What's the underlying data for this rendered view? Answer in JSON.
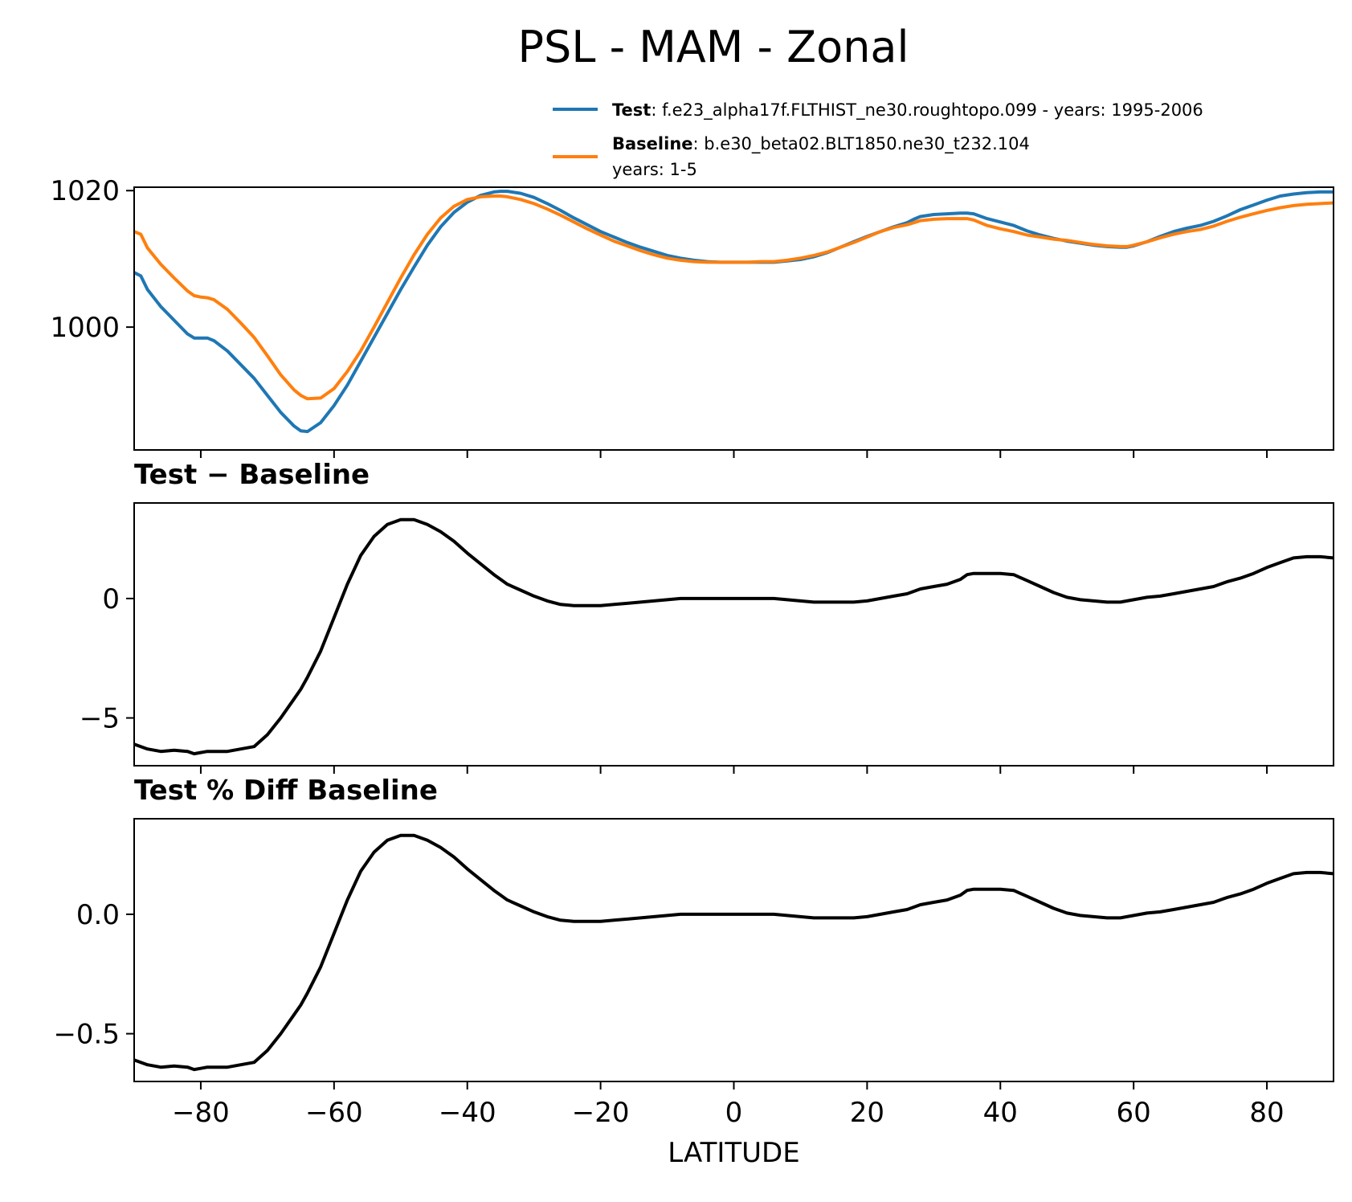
{
  "chart_data": [
    {
      "type": "line",
      "panel": "zonal-means",
      "title": "PSL - MAM - Zonal",
      "xlim": [
        -90,
        90
      ],
      "ylim": [
        982,
        1020.5
      ],
      "yticks": [
        1000,
        1020
      ],
      "ytick_labels": [
        "1000",
        "1020"
      ],
      "grid": false,
      "legend_placement": "above-right",
      "series": [
        {
          "name": "Test",
          "legend_label": "Test",
          "legend_text": ": f.e23_alpha17f.FLTHIST_ne30.roughtopo.099 - years: 1995-2006",
          "legend_text2": "",
          "color": "#1f77b4",
          "x": [
            -90,
            -89,
            -88,
            -86,
            -84,
            -82,
            -81,
            -80,
            -79,
            -78,
            -76,
            -74,
            -72,
            -70,
            -68,
            -66,
            -65,
            -64,
            -62,
            -60,
            -58,
            -56,
            -54,
            -52,
            -50,
            -48,
            -46,
            -44,
            -42,
            -40,
            -38,
            -36,
            -35,
            -34,
            -32,
            -30,
            -28,
            -26,
            -24,
            -22,
            -20,
            -18,
            -16,
            -14,
            -12,
            -10,
            -8,
            -6,
            -4,
            -2,
            0,
            2,
            4,
            6,
            8,
            10,
            12,
            14,
            16,
            18,
            20,
            22,
            24,
            26,
            27,
            28,
            30,
            32,
            34,
            35,
            36,
            38,
            40,
            42,
            44,
            46,
            48,
            50,
            52,
            54,
            56,
            58,
            59,
            60,
            62,
            64,
            66,
            68,
            70,
            72,
            74,
            76,
            78,
            80,
            82,
            84,
            86,
            88,
            90
          ],
          "values": [
            1008,
            1007.5,
            1005.5,
            1003,
            1001,
            999,
            998.4,
            998.4,
            998.4,
            998,
            996.5,
            994.5,
            992.5,
            990,
            987.5,
            985.5,
            984.8,
            984.7,
            986,
            988.5,
            991.5,
            995,
            998.5,
            1002,
            1005.5,
            1008.8,
            1012,
            1014.7,
            1016.8,
            1018.3,
            1019.3,
            1019.8,
            1019.9,
            1019.9,
            1019.6,
            1019,
            1018.1,
            1017.1,
            1016,
            1015,
            1014,
            1013.2,
            1012.4,
            1011.7,
            1011.1,
            1010.5,
            1010.1,
            1009.8,
            1009.6,
            1009.5,
            1009.5,
            1009.5,
            1009.5,
            1009.5,
            1009.7,
            1009.9,
            1010.3,
            1010.9,
            1011.7,
            1012.5,
            1013.3,
            1014,
            1014.7,
            1015.3,
            1015.8,
            1016.2,
            1016.5,
            1016.6,
            1016.7,
            1016.7,
            1016.6,
            1015.9,
            1015.4,
            1014.9,
            1014.1,
            1013.5,
            1013,
            1012.6,
            1012.3,
            1012,
            1011.8,
            1011.7,
            1011.7,
            1011.9,
            1012.5,
            1013.3,
            1014,
            1014.5,
            1014.9,
            1015.5,
            1016.3,
            1017.2,
            1017.9,
            1018.6,
            1019.2,
            1019.5,
            1019.7,
            1019.8,
            1019.8
          ]
        },
        {
          "name": "Baseline",
          "legend_label": "Baseline",
          "legend_text": ": b.e30_beta02.BLT1850.ne30_t232.104",
          "legend_text2": "years: 1-5",
          "color": "#ff7f0e",
          "x": [
            -90,
            -89,
            -88,
            -86,
            -84,
            -82,
            -81,
            -80,
            -79,
            -78,
            -76,
            -74,
            -72,
            -70,
            -68,
            -66,
            -65,
            -64,
            -62,
            -60,
            -58,
            -56,
            -54,
            -52,
            -50,
            -48,
            -46,
            -44,
            -42,
            -40,
            -38,
            -36,
            -35,
            -34,
            -32,
            -30,
            -28,
            -26,
            -24,
            -22,
            -20,
            -18,
            -16,
            -14,
            -12,
            -10,
            -8,
            -6,
            -4,
            -2,
            0,
            2,
            4,
            6,
            8,
            10,
            12,
            14,
            16,
            18,
            20,
            22,
            24,
            26,
            27,
            28,
            30,
            32,
            34,
            35,
            36,
            38,
            40,
            42,
            44,
            46,
            48,
            50,
            52,
            54,
            56,
            58,
            59,
            60,
            62,
            64,
            66,
            68,
            70,
            72,
            74,
            76,
            78,
            80,
            82,
            84,
            86,
            88,
            90
          ],
          "values": [
            1014,
            1013.6,
            1011.6,
            1009.2,
            1007.2,
            1005.3,
            1004.6,
            1004.4,
            1004.3,
            1004,
            1002.6,
            1000.6,
            998.5,
            995.8,
            993,
            990.8,
            990,
            989.5,
            989.6,
            991,
            993.5,
            996.5,
            1000,
            1003.6,
            1007.2,
            1010.6,
            1013.6,
            1016,
            1017.7,
            1018.7,
            1019.1,
            1019.2,
            1019.2,
            1019.1,
            1018.7,
            1018.1,
            1017.3,
            1016.4,
            1015.4,
            1014.4,
            1013.5,
            1012.6,
            1011.9,
            1011.2,
            1010.6,
            1010.1,
            1009.8,
            1009.6,
            1009.5,
            1009.5,
            1009.5,
            1009.5,
            1009.6,
            1009.6,
            1009.8,
            1010.1,
            1010.5,
            1011,
            1011.7,
            1012.4,
            1013.2,
            1014,
            1014.6,
            1015,
            1015.3,
            1015.6,
            1015.8,
            1015.9,
            1015.9,
            1015.9,
            1015.7,
            1014.9,
            1014.4,
            1014,
            1013.5,
            1013.2,
            1012.9,
            1012.7,
            1012.4,
            1012.1,
            1011.9,
            1011.8,
            1011.8,
            1012,
            1012.5,
            1013.1,
            1013.6,
            1014,
            1014.3,
            1014.8,
            1015.5,
            1016.1,
            1016.6,
            1017.1,
            1017.5,
            1017.8,
            1018,
            1018.1,
            1018.2
          ]
        }
      ]
    },
    {
      "type": "line",
      "panel": "difference",
      "title": "Test − Baseline",
      "xlim": [
        -90,
        90
      ],
      "ylim": [
        -7,
        4
      ],
      "yticks": [
        -5,
        0
      ],
      "ytick_labels": [
        "−5",
        "0"
      ],
      "grid": false,
      "series": [
        {
          "color": "#000000",
          "x": [
            -90,
            -89,
            -88,
            -86,
            -84,
            -82,
            -81,
            -80,
            -79,
            -78,
            -76,
            -74,
            -72,
            -70,
            -68,
            -66,
            -65,
            -64,
            -62,
            -60,
            -58,
            -56,
            -54,
            -52,
            -50,
            -48,
            -46,
            -44,
            -42,
            -40,
            -38,
            -36,
            -35,
            -34,
            -32,
            -30,
            -28,
            -26,
            -24,
            -22,
            -20,
            -18,
            -16,
            -14,
            -12,
            -10,
            -8,
            -6,
            -4,
            -2,
            0,
            2,
            4,
            6,
            8,
            10,
            12,
            14,
            16,
            18,
            20,
            22,
            24,
            26,
            27,
            28,
            30,
            32,
            34,
            35,
            36,
            38,
            40,
            42,
            44,
            46,
            48,
            50,
            52,
            54,
            56,
            58,
            59,
            60,
            62,
            64,
            66,
            68,
            70,
            72,
            74,
            76,
            78,
            80,
            82,
            84,
            86,
            88,
            90
          ],
          "values": [
            -6.1,
            -6.2,
            -6.3,
            -6.4,
            -6.35,
            -6.4,
            -6.5,
            -6.45,
            -6.4,
            -6.4,
            -6.4,
            -6.3,
            -6.2,
            -5.7,
            -5,
            -4.2,
            -3.8,
            -3.3,
            -2.2,
            -0.8,
            0.6,
            1.8,
            2.6,
            3.1,
            3.3,
            3.3,
            3.1,
            2.8,
            2.4,
            1.9,
            1.45,
            1.0,
            0.8,
            0.6,
            0.35,
            0.1,
            -0.1,
            -0.25,
            -0.3,
            -0.3,
            -0.3,
            -0.25,
            -0.2,
            -0.15,
            -0.1,
            -0.05,
            0,
            0,
            0,
            0,
            0,
            0,
            0,
            0,
            -0.05,
            -0.1,
            -0.15,
            -0.15,
            -0.15,
            -0.15,
            -0.1,
            0,
            0.1,
            0.2,
            0.3,
            0.4,
            0.5,
            0.6,
            0.8,
            1,
            1.05,
            1.05,
            1.05,
            1,
            0.75,
            0.5,
            0.25,
            0.05,
            -0.05,
            -0.1,
            -0.15,
            -0.15,
            -0.1,
            -0.05,
            0.05,
            0.1,
            0.2,
            0.3,
            0.4,
            0.5,
            0.7,
            0.85,
            1.05,
            1.3,
            1.5,
            1.7,
            1.75,
            1.75,
            1.7
          ]
        }
      ]
    },
    {
      "type": "line",
      "panel": "percent-difference",
      "title": "Test % Diff Baseline",
      "xlim": [
        -90,
        90
      ],
      "ylim": [
        -0.7,
        0.4
      ],
      "yticks": [
        -0.5,
        0.0
      ],
      "ytick_labels": [
        "−0.5",
        "0.0"
      ],
      "xticks": [
        -80,
        -60,
        -40,
        -20,
        0,
        20,
        40,
        60,
        80
      ],
      "xtick_labels": [
        "−80",
        "−60",
        "−40",
        "−20",
        "0",
        "20",
        "40",
        "60",
        "80"
      ],
      "xlabel": "LATITUDE",
      "grid": false,
      "series": [
        {
          "color": "#000000",
          "x": [
            -90,
            -89,
            -88,
            -86,
            -84,
            -82,
            -81,
            -80,
            -79,
            -78,
            -76,
            -74,
            -72,
            -70,
            -68,
            -66,
            -65,
            -64,
            -62,
            -60,
            -58,
            -56,
            -54,
            -52,
            -50,
            -48,
            -46,
            -44,
            -42,
            -40,
            -38,
            -36,
            -35,
            -34,
            -32,
            -30,
            -28,
            -26,
            -24,
            -22,
            -20,
            -18,
            -16,
            -14,
            -12,
            -10,
            -8,
            -6,
            -4,
            -2,
            0,
            2,
            4,
            6,
            8,
            10,
            12,
            14,
            16,
            18,
            20,
            22,
            24,
            26,
            27,
            28,
            30,
            32,
            34,
            35,
            36,
            38,
            40,
            42,
            44,
            46,
            48,
            50,
            52,
            54,
            56,
            58,
            59,
            60,
            62,
            64,
            66,
            68,
            70,
            72,
            74,
            76,
            78,
            80,
            82,
            84,
            86,
            88,
            90
          ],
          "values": [
            -0.61,
            -0.62,
            -0.63,
            -0.64,
            -0.635,
            -0.64,
            -0.65,
            -0.645,
            -0.64,
            -0.64,
            -0.64,
            -0.63,
            -0.62,
            -0.57,
            -0.5,
            -0.42,
            -0.38,
            -0.33,
            -0.22,
            -0.08,
            0.06,
            0.18,
            0.26,
            0.31,
            0.33,
            0.33,
            0.31,
            0.28,
            0.24,
            0.19,
            0.145,
            0.1,
            0.08,
            0.06,
            0.035,
            0.01,
            -0.01,
            -0.025,
            -0.03,
            -0.03,
            -0.03,
            -0.025,
            -0.02,
            -0.015,
            -0.01,
            -0.005,
            0,
            0,
            0,
            0,
            0,
            0,
            0,
            0,
            -0.005,
            -0.01,
            -0.015,
            -0.015,
            -0.015,
            -0.015,
            -0.01,
            0,
            0.01,
            0.02,
            0.03,
            0.04,
            0.05,
            0.06,
            0.08,
            0.1,
            0.105,
            0.105,
            0.105,
            0.1,
            0.075,
            0.05,
            0.025,
            0.005,
            -0.005,
            -0.01,
            -0.015,
            -0.015,
            -0.01,
            -0.005,
            0.005,
            0.01,
            0.02,
            0.03,
            0.04,
            0.05,
            0.07,
            0.085,
            0.105,
            0.13,
            0.15,
            0.17,
            0.175,
            0.175,
            0.17
          ]
        }
      ]
    }
  ]
}
